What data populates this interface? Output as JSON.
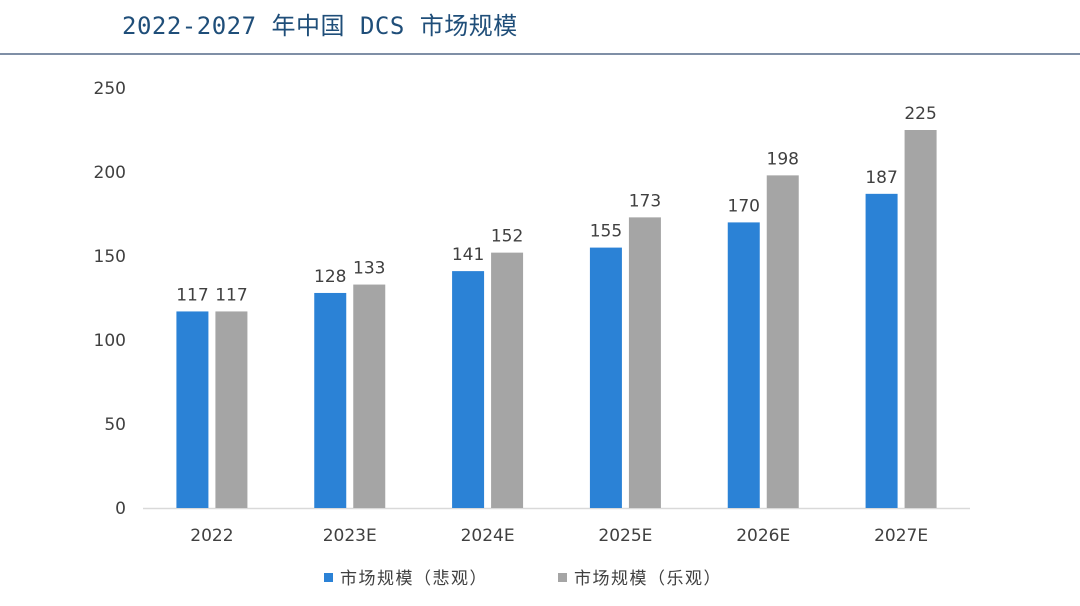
{
  "page": {
    "title": "2022-2027 年中国 DCS 市场规模"
  },
  "chart_data": {
    "type": "bar",
    "categories": [
      "2022",
      "2023E",
      "2024E",
      "2025E",
      "2026E",
      "2027E"
    ],
    "series": [
      {
        "name": "市场规模（悲观）",
        "values": [
          117,
          128,
          141,
          155,
          170,
          187
        ],
        "color": "#2b82d6"
      },
      {
        "name": "市场规模（乐观）",
        "values": [
          117,
          133,
          152,
          173,
          198,
          225
        ],
        "color": "#a5a5a5"
      }
    ],
    "yticks": [
      0,
      50,
      100,
      150,
      200,
      250
    ],
    "ylim": [
      0,
      250
    ],
    "title": "",
    "xlabel": "",
    "ylabel": "",
    "legend_position": "bottom",
    "grid": false,
    "axis_color": "#d9d9d9"
  }
}
